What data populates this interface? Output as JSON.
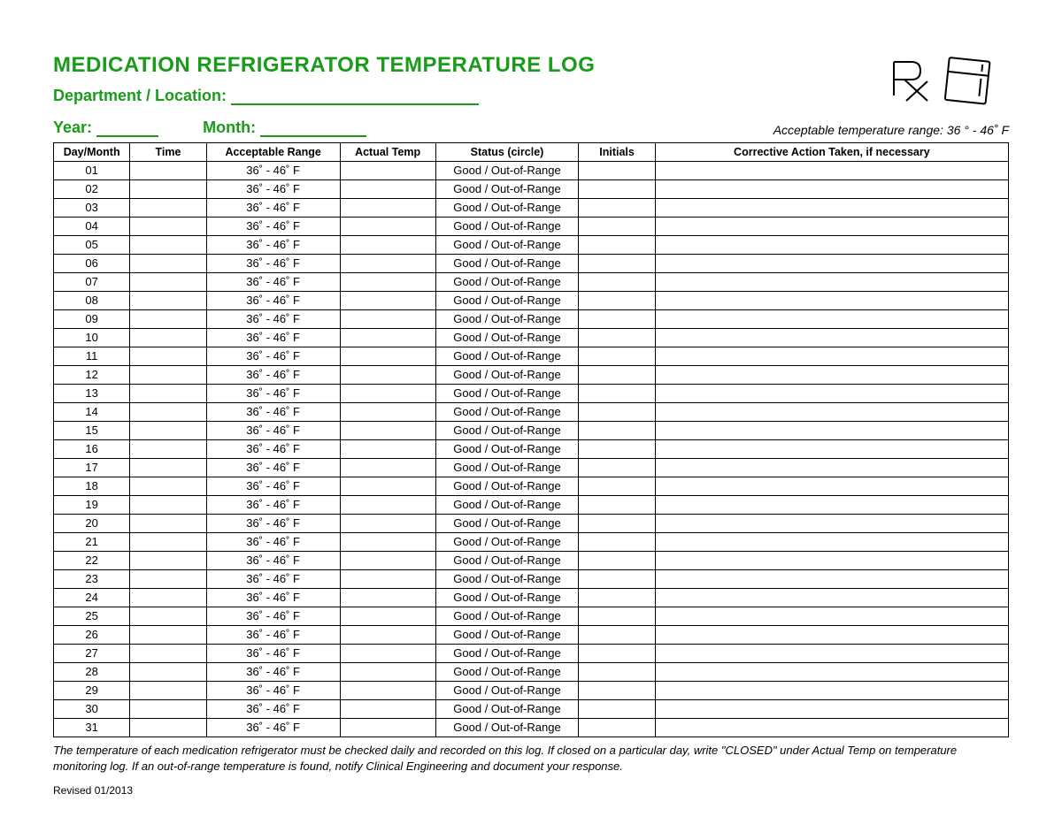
{
  "colors": {
    "accent": "#1a9b1a",
    "text": "#000000",
    "background": "#ffffff",
    "border": "#000000"
  },
  "header": {
    "title": "MEDICATION REFRIGERATOR TEMPERATURE LOG",
    "dept_label": "Department / Location:",
    "year_label": "Year:",
    "month_label": "Month:",
    "acceptable_range_text": "Acceptable temperature range: 36 ° - 46˚ F"
  },
  "table": {
    "columns": [
      "Day/Month",
      "Time",
      "Acceptable Range",
      "Actual Temp",
      "Status (circle)",
      "Initials",
      "Corrective Action Taken, if necessary"
    ],
    "range_value": "36˚ - 46˚ F",
    "status_value": "Good  /  Out-of-Range",
    "days": [
      "01",
      "02",
      "03",
      "04",
      "05",
      "06",
      "07",
      "08",
      "09",
      "10",
      "11",
      "12",
      "13",
      "14",
      "15",
      "16",
      "17",
      "18",
      "19",
      "20",
      "21",
      "22",
      "23",
      "24",
      "25",
      "26",
      "27",
      "28",
      "29",
      "30",
      "31"
    ]
  },
  "footnote": "The temperature of each medication refrigerator must be checked daily and recorded on this log. If closed  on a particular day, write \"CLOSED\" under Actual Temp on temperature monitoring log. If an out-of-range temperature is found, notify Clinical Engineering and document your response.",
  "revised": "Revised 01/2013"
}
